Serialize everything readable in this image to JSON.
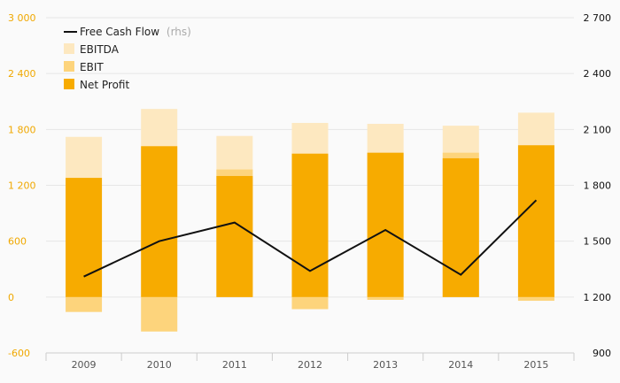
{
  "chart_data": {
    "type": "bar",
    "categories": [
      "2009",
      "2010",
      "2011",
      "2012",
      "2013",
      "2014",
      "2015"
    ],
    "series": [
      {
        "name": "EBITDA",
        "type": "bar",
        "axis": "left",
        "values": [
          1720,
          2020,
          1730,
          1870,
          1860,
          1840,
          1980
        ],
        "color": "#fde8c0"
      },
      {
        "name": "EBIT",
        "type": "bar",
        "axis": "left",
        "values": [
          -160,
          -370,
          1370,
          -130,
          -30,
          1550,
          -40
        ],
        "color": "#fdd47c"
      },
      {
        "name": "Net Profit",
        "type": "bar",
        "axis": "left",
        "values": [
          1280,
          1620,
          1300,
          1540,
          1550,
          1490,
          1630
        ],
        "color": "#f7ab00"
      },
      {
        "name": "Free Cash Flow",
        "type": "line",
        "axis": "right",
        "values": [
          1310,
          1500,
          1600,
          1340,
          1560,
          1320,
          1720
        ],
        "color": "#111111"
      }
    ],
    "y_left": {
      "min": -600,
      "max": 3000,
      "ticks": [
        -600,
        0,
        600,
        1200,
        1800,
        2400,
        3000
      ],
      "tick_labels": [
        "-600",
        "0",
        "600",
        "1 200",
        "1 800",
        "2 400",
        "3 000"
      ]
    },
    "y_right": {
      "min": 900,
      "max": 2700,
      "ticks": [
        900,
        1200,
        1500,
        1800,
        2100,
        2400,
        2700
      ],
      "tick_labels": [
        "900",
        "1 200",
        "1 500",
        "1 800",
        "2 100",
        "2 400",
        "2 700"
      ]
    },
    "legend": {
      "position": "top-left",
      "line_label": "Free Cash Flow",
      "line_suffix": "(rhs)",
      "items": [
        "EBITDA",
        "EBIT",
        "Net Profit"
      ]
    },
    "grid": true,
    "colors": {
      "left_axis": "#f0a800",
      "right_axis": "#111111",
      "grid": "#e6e6e6"
    }
  }
}
